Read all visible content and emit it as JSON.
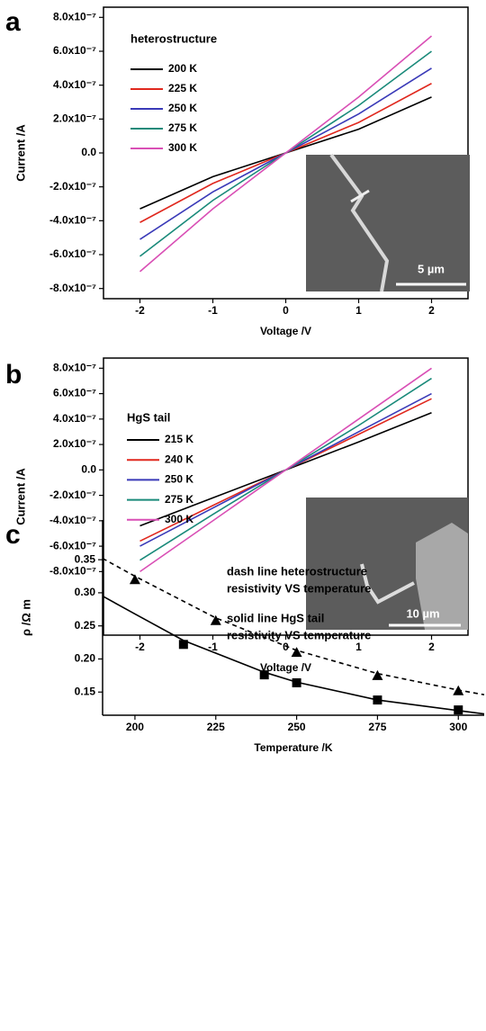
{
  "chart_data": [
    {
      "type": "line",
      "panel_label": "a",
      "x_label": "Voltage /V",
      "y_label": "Current /A",
      "legend_title": "heterostructure",
      "legend": "upper left",
      "inset_label": "5 µm",
      "x": [
        -2,
        -1,
        0,
        1,
        2
      ],
      "series": [
        {
          "name": "200 K",
          "color": "#000000",
          "values": [
            -3.3e-07,
            -1.4e-07,
            0,
            1.4e-07,
            3.3e-07
          ]
        },
        {
          "name": "225 K",
          "color": "#e0281e",
          "values": [
            -4.1e-07,
            -1.8e-07,
            0,
            1.8e-07,
            4.1e-07
          ]
        },
        {
          "name": "250 K",
          "color": "#3a3ab8",
          "values": [
            -5.1e-07,
            -2.3e-07,
            0,
            2.3e-07,
            5e-07
          ]
        },
        {
          "name": "275 K",
          "color": "#1a8a7a",
          "values": [
            -6.1e-07,
            -2.8e-07,
            0,
            2.8e-07,
            6e-07
          ]
        },
        {
          "name": "300 K",
          "color": "#d94fb5",
          "values": [
            -7e-07,
            -3.3e-07,
            0,
            3.3e-07,
            6.9e-07
          ]
        }
      ],
      "xlim": [
        -2.5,
        2.5
      ],
      "xticks": [
        -2,
        -1,
        0,
        1,
        2
      ],
      "ylim": [
        -8.6e-07,
        8.6e-07
      ],
      "yticks": [
        {
          "value": -8e-07,
          "label": "-8.0x10⁻⁷"
        },
        {
          "value": -6e-07,
          "label": "-6.0x10⁻⁷"
        },
        {
          "value": -4e-07,
          "label": "-4.0x10⁻⁷"
        },
        {
          "value": -2e-07,
          "label": "-2.0x10⁻⁷"
        },
        {
          "value": 0,
          "label": "0.0"
        },
        {
          "value": 2e-07,
          "label": "2.0x10⁻⁷"
        },
        {
          "value": 4e-07,
          "label": "4.0x10⁻⁷"
        },
        {
          "value": 6e-07,
          "label": "6.0x10⁻⁷"
        },
        {
          "value": 8e-07,
          "label": "8.0x10⁻⁷"
        }
      ]
    },
    {
      "type": "line",
      "panel_label": "b",
      "x_label": "Voltage /V",
      "y_label": "Current /A",
      "legend_title": "HgS tail",
      "legend": "upper left",
      "inset_label": "10 µm",
      "x": [
        -2,
        -1,
        0,
        1,
        2
      ],
      "series": [
        {
          "name": "215 K",
          "color": "#000000",
          "values": [
            -4.4e-07,
            -2.2e-07,
            0,
            2.2e-07,
            4.5e-07
          ]
        },
        {
          "name": "240 K",
          "color": "#e0281e",
          "values": [
            -5.6e-07,
            -2.8e-07,
            0,
            2.8e-07,
            5.6e-07
          ]
        },
        {
          "name": "250 K",
          "color": "#3a3ab8",
          "values": [
            -6e-07,
            -3e-07,
            0,
            3e-07,
            6e-07
          ]
        },
        {
          "name": "275 K",
          "color": "#1a8a7a",
          "values": [
            -7.1e-07,
            -3.5e-07,
            0,
            3.5e-07,
            7.2e-07
          ]
        },
        {
          "name": "300 K",
          "color": "#d94fb5",
          "values": [
            -8e-07,
            -4e-07,
            0,
            4e-07,
            8e-07
          ]
        }
      ],
      "xlim": [
        -2.5,
        2.5
      ],
      "xticks": [
        -2,
        -1,
        0,
        1,
        2
      ],
      "ylim": [
        -1.3e-06,
        8.8e-07
      ],
      "yticks": [
        {
          "value": -8e-07,
          "label": "-8.0x10⁻⁷"
        },
        {
          "value": -6e-07,
          "label": "-6.0x10⁻⁷"
        },
        {
          "value": -4e-07,
          "label": "-4.0x10⁻⁷"
        },
        {
          "value": -2e-07,
          "label": "-2.0x10⁻⁷"
        },
        {
          "value": 0,
          "label": "0.0"
        },
        {
          "value": 2e-07,
          "label": "2.0x10⁻⁷"
        },
        {
          "value": 4e-07,
          "label": "4.0x10⁻⁷"
        },
        {
          "value": 6e-07,
          "label": "6.0x10⁻⁷"
        },
        {
          "value": 8e-07,
          "label": "8.0x10⁻⁷"
        }
      ]
    },
    {
      "type": "scatter",
      "panel_label": "c",
      "x_label": "Temperature /K",
      "y_label": "ρ /Ω m",
      "annotations": [
        "dash line heterostructure",
        "resistivity VS temperature",
        "solid line HgS tail",
        "resistivity VS temperature"
      ],
      "series": [
        {
          "marker": "triangle",
          "color": "#000000",
          "x": [
            200,
            225,
            250,
            275,
            300
          ],
          "values": [
            0.32,
            0.258,
            0.21,
            0.175,
            0.152
          ]
        },
        {
          "marker": "square",
          "color": "#000000",
          "x": [
            215,
            240,
            250,
            275,
            300
          ],
          "values": [
            0.222,
            0.176,
            0.164,
            0.138,
            0.123
          ]
        }
      ],
      "fits": [
        {
          "dash": true,
          "x": [
            190,
            200,
            225,
            250,
            275,
            300,
            308
          ],
          "values": [
            0.352,
            0.325,
            0.262,
            0.213,
            0.178,
            0.153,
            0.146
          ]
        },
        {
          "dash": false,
          "x": [
            190,
            200,
            215,
            240,
            250,
            275,
            300,
            308
          ],
          "values": [
            0.295,
            0.268,
            0.228,
            0.18,
            0.165,
            0.138,
            0.122,
            0.117
          ]
        }
      ],
      "xlim": [
        190,
        308
      ],
      "xticks": [
        200,
        225,
        250,
        275,
        300
      ],
      "ylim": [
        0.115,
        0.41
      ],
      "yticks": [
        0.15,
        {
          "value": 0.2,
          "label": "0.20"
        },
        0.25,
        {
          "value": 0.3,
          "label": "0.30"
        },
        0.35
      ]
    }
  ]
}
